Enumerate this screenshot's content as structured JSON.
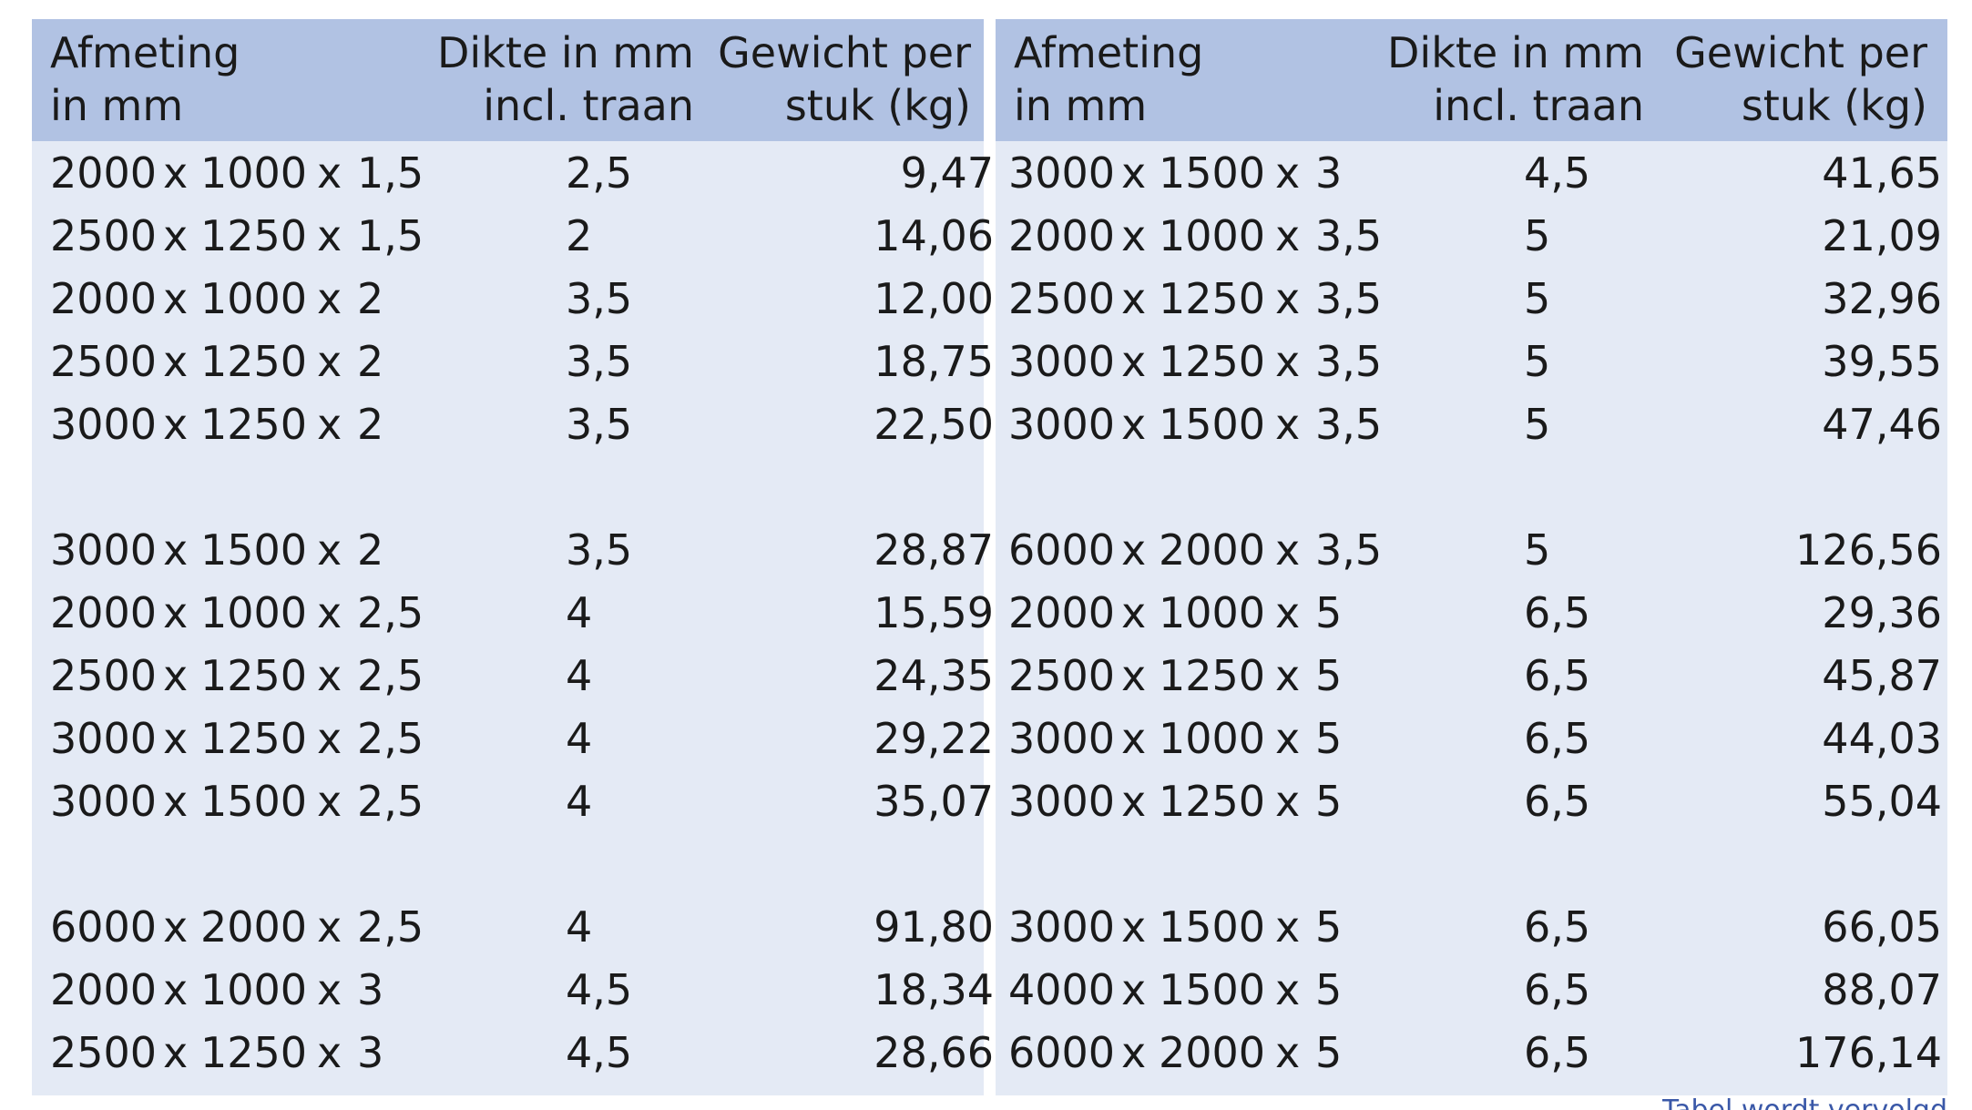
{
  "table": {
    "headers": {
      "size": [
        "Afmeting",
        "in mm"
      ],
      "thickness": [
        "Dikte in mm",
        "incl. traan"
      ],
      "weight": [
        "Gewicht per",
        "stuk (kg)"
      ]
    },
    "left_rows": [
      {
        "a": "2000",
        "b": "1000",
        "c": "1,5",
        "thickness": "2,5",
        "weight": "9,47"
      },
      {
        "a": "2500",
        "b": "1250",
        "c": "1,5",
        "thickness": "2",
        "weight": "14,06"
      },
      {
        "a": "2000",
        "b": "1000",
        "c": "2",
        "thickness": "3,5",
        "weight": "12,00"
      },
      {
        "a": "2500",
        "b": "1250",
        "c": "2",
        "thickness": "3,5",
        "weight": "18,75"
      },
      {
        "a": "3000",
        "b": "1250",
        "c": "2",
        "thickness": "3,5",
        "weight": "22,50"
      },
      {
        "a": "3000",
        "b": "1500",
        "c": "2",
        "thickness": "3,5",
        "weight": "28,87"
      },
      {
        "a": "2000",
        "b": "1000",
        "c": "2,5",
        "thickness": "4",
        "weight": "15,59"
      },
      {
        "a": "2500",
        "b": "1250",
        "c": "2,5",
        "thickness": "4",
        "weight": "24,35"
      },
      {
        "a": "3000",
        "b": "1250",
        "c": "2,5",
        "thickness": "4",
        "weight": "29,22"
      },
      {
        "a": "3000",
        "b": "1500",
        "c": "2,5",
        "thickness": "4",
        "weight": "35,07"
      },
      {
        "a": "6000",
        "b": "2000",
        "c": "2,5",
        "thickness": "4",
        "weight": "91,80"
      },
      {
        "a": "2000",
        "b": "1000",
        "c": "3",
        "thickness": "4,5",
        "weight": "18,34"
      },
      {
        "a": "2500",
        "b": "1250",
        "c": "3",
        "thickness": "4,5",
        "weight": "28,66"
      }
    ],
    "right_rows": [
      {
        "a": "3000",
        "b": "1500",
        "c": "3",
        "thickness": "4,5",
        "weight": "41,65"
      },
      {
        "a": "2000",
        "b": "1000",
        "c": "3,5",
        "thickness": "5",
        "weight": "21,09"
      },
      {
        "a": "2500",
        "b": "1250",
        "c": "3,5",
        "thickness": "5",
        "weight": "32,96"
      },
      {
        "a": "3000",
        "b": "1250",
        "c": "3,5",
        "thickness": "5",
        "weight": "39,55"
      },
      {
        "a": "3000",
        "b": "1500",
        "c": "3,5",
        "thickness": "5",
        "weight": "47,46"
      },
      {
        "a": "6000",
        "b": "2000",
        "c": "3,5",
        "thickness": "5",
        "weight": "126,56"
      },
      {
        "a": "2000",
        "b": "1000",
        "c": "5",
        "thickness": "6,5",
        "weight": "29,36"
      },
      {
        "a": "2500",
        "b": "1250",
        "c": "5",
        "thickness": "6,5",
        "weight": "45,87"
      },
      {
        "a": "3000",
        "b": "1000",
        "c": "5",
        "thickness": "6,5",
        "weight": "44,03"
      },
      {
        "a": "3000",
        "b": "1250",
        "c": "5",
        "thickness": "6,5",
        "weight": "55,04"
      },
      {
        "a": "3000",
        "b": "1500",
        "c": "5",
        "thickness": "6,5",
        "weight": "66,05"
      },
      {
        "a": "4000",
        "b": "1500",
        "c": "5",
        "thickness": "6,5",
        "weight": "88,07"
      },
      {
        "a": "6000",
        "b": "2000",
        "c": "5",
        "thickness": "6,5",
        "weight": "176,14"
      }
    ],
    "times_symbol": "x"
  },
  "footnote": "Tabel wordt vervolgd",
  "colors": {
    "header_bg": "#b1c2e3",
    "body_bg": "#e4eaf5",
    "footnote_text": "#3a58a8"
  }
}
